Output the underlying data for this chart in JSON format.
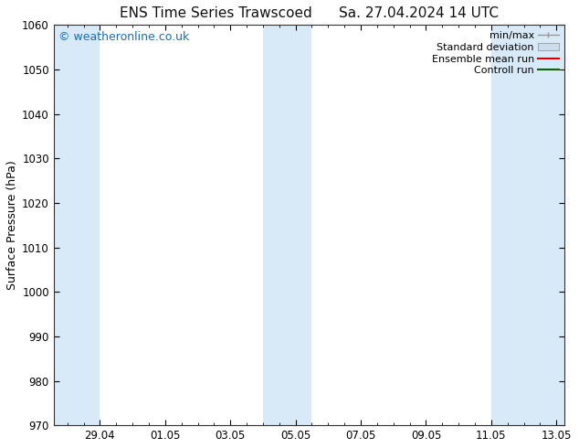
{
  "title_left": "ENS Time Series Trawscoed",
  "title_right": "Sa. 27.04.2024 14 UTC",
  "ylabel": "Surface Pressure (hPa)",
  "ylim": [
    970,
    1060
  ],
  "yticks": [
    970,
    980,
    990,
    1000,
    1010,
    1020,
    1030,
    1040,
    1050,
    1060
  ],
  "watermark": "© weatheronline.co.uk",
  "watermark_color": "#1a6cc0",
  "background_color": "#ffffff",
  "plot_bg_color": "#ffffff",
  "shaded_band_color": "#d8eaf7",
  "xtick_labels": [
    "29.04",
    "01.05",
    "03.05",
    "05.05",
    "07.05",
    "09.05",
    "11.05",
    "13.05"
  ],
  "title_fontsize": 11,
  "axis_label_fontsize": 9,
  "tick_fontsize": 8.5,
  "legend_fontsize": 8,
  "watermark_fontsize": 9
}
